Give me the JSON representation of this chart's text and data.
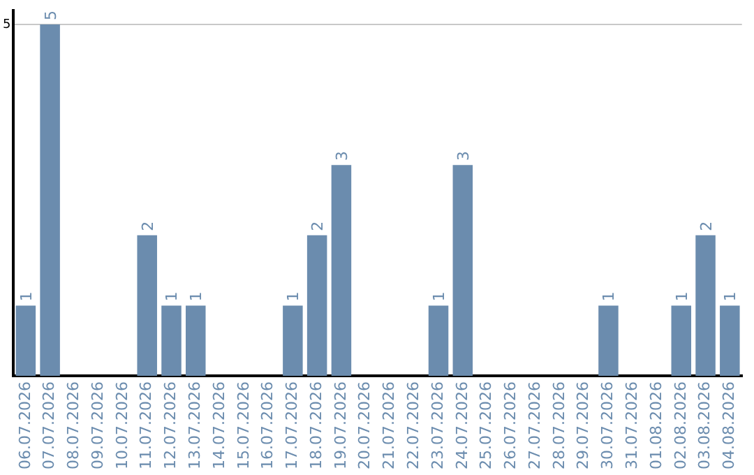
{
  "chart_data": {
    "type": "bar",
    "categories": [
      "06.07.2026",
      "07.07.2026",
      "08.07.2026",
      "09.07.2026",
      "10.07.2026",
      "11.07.2026",
      "12.07.2026",
      "13.07.2026",
      "14.07.2026",
      "15.07.2026",
      "16.07.2026",
      "17.07.2026",
      "18.07.2026",
      "19.07.2026",
      "20.07.2026",
      "21.07.2026",
      "22.07.2026",
      "23.07.2026",
      "24.07.2026",
      "25.07.2026",
      "26.07.2026",
      "27.07.2026",
      "28.07.2026",
      "29.07.2026",
      "30.07.2026",
      "31.07.2026",
      "01.08.2026",
      "02.08.2026",
      "03.08.2026",
      "04.08.2026"
    ],
    "values": [
      1,
      5,
      0,
      0,
      0,
      2,
      1,
      1,
      0,
      0,
      0,
      1,
      2,
      3,
      0,
      0,
      0,
      1,
      3,
      0,
      0,
      0,
      0,
      0,
      1,
      0,
      0,
      1,
      2,
      1
    ],
    "value_labels": [
      "1",
      "5",
      null,
      null,
      null,
      "2",
      "1",
      "1",
      null,
      null,
      null,
      "1",
      "2",
      "3",
      null,
      null,
      null,
      "1",
      "3",
      null,
      null,
      null,
      null,
      null,
      "1",
      null,
      null,
      "1",
      "2",
      "1"
    ],
    "color": "#6b8cae",
    "ylim": [
      0,
      5.2
    ],
    "yticks": [
      5
    ],
    "grid": "y",
    "legend": false
  }
}
